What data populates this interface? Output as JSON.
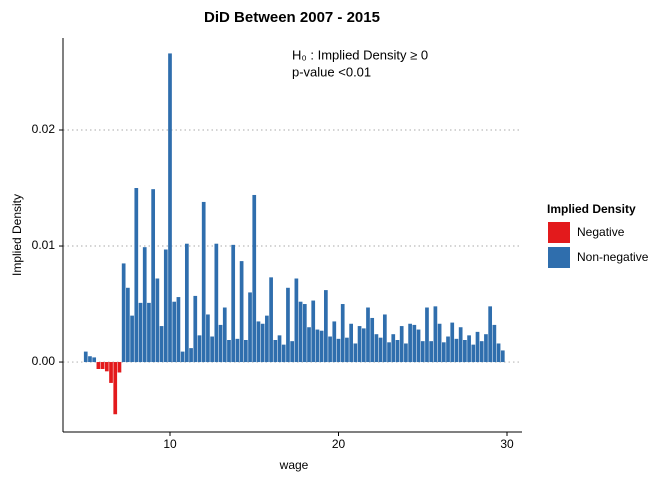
{
  "chart_data": {
    "type": "bar",
    "title": "DiD Between 2007 - 2015",
    "x_label": "wage",
    "y_label": "Implied Density",
    "annotations": [
      "H₀ : Implied Density ≥ 0",
      "p-value <0.01"
    ],
    "legend": {
      "title": "Implied Density",
      "entries": [
        {
          "name": "Negative",
          "color": "#e31a1c"
        },
        {
          "name": "Non-negative",
          "color": "#2f6ead"
        }
      ]
    },
    "x": [
      5.0,
      5.25,
      5.5,
      5.75,
      6.0,
      6.25,
      6.5,
      6.75,
      7.0,
      7.25,
      7.5,
      7.75,
      8.0,
      8.25,
      8.5,
      8.75,
      9.0,
      9.25,
      9.5,
      9.75,
      10.0,
      10.25,
      10.5,
      10.75,
      11.0,
      11.25,
      11.5,
      11.75,
      12.0,
      12.25,
      12.5,
      12.75,
      13.0,
      13.25,
      13.5,
      13.75,
      14.0,
      14.25,
      14.5,
      14.75,
      15.0,
      15.25,
      15.5,
      15.75,
      16.0,
      16.25,
      16.5,
      16.75,
      17.0,
      17.25,
      17.5,
      17.75,
      18.0,
      18.25,
      18.5,
      18.75,
      19.0,
      19.25,
      19.5,
      19.75,
      20.0,
      20.25,
      20.5,
      20.75,
      21.0,
      21.25,
      21.5,
      21.75,
      22.0,
      22.25,
      22.5,
      22.75,
      23.0,
      23.25,
      23.5,
      23.75,
      24.0,
      24.25,
      24.5,
      24.75,
      25.0,
      25.25,
      25.5,
      25.75,
      26.0,
      26.25,
      26.5,
      26.75,
      27.0,
      27.25,
      27.5,
      27.75,
      28.0,
      28.25,
      28.5,
      28.75,
      29.0,
      29.25,
      29.5,
      29.75
    ],
    "values": [
      0.0009,
      0.0005,
      0.0004,
      -0.0006,
      -0.0006,
      -0.0008,
      -0.0018,
      -0.0045,
      -0.0009,
      0.0085,
      0.0064,
      0.004,
      0.015,
      0.0051,
      0.0099,
      0.0051,
      0.0149,
      0.0072,
      0.0031,
      0.0097,
      0.0266,
      0.0052,
      0.0056,
      0.0009,
      0.0102,
      0.0012,
      0.0057,
      0.0023,
      0.0138,
      0.0041,
      0.0022,
      0.0102,
      0.0032,
      0.0047,
      0.0019,
      0.0101,
      0.002,
      0.0087,
      0.0019,
      0.006,
      0.0144,
      0.0035,
      0.0033,
      0.004,
      0.0073,
      0.0019,
      0.0023,
      0.0015,
      0.0064,
      0.0018,
      0.0072,
      0.0052,
      0.005,
      0.003,
      0.0053,
      0.0028,
      0.0027,
      0.0062,
      0.0022,
      0.0035,
      0.002,
      0.005,
      0.0021,
      0.0033,
      0.0016,
      0.0031,
      0.0029,
      0.0047,
      0.0038,
      0.0024,
      0.0021,
      0.0041,
      0.0017,
      0.0024,
      0.0019,
      0.0031,
      0.0016,
      0.0033,
      0.0032,
      0.0028,
      0.0018,
      0.0047,
      0.0018,
      0.0048,
      0.0033,
      0.0017,
      0.0022,
      0.0034,
      0.002,
      0.003,
      0.0019,
      0.0023,
      0.0015,
      0.0026,
      0.0018,
      0.0024,
      0.0048,
      0.0032,
      0.0016,
      0.001
    ],
    "xlim": [
      3.65,
      30.89
    ],
    "ylim": [
      -0.00603,
      0.02793
    ],
    "xticks": [
      10,
      20,
      30
    ],
    "yticks": [
      {
        "value": 0,
        "label": "0.00"
      },
      {
        "value": 0.01,
        "label": "0.01"
      },
      {
        "value": 0.02,
        "label": "0.02"
      }
    ],
    "grid": true
  }
}
